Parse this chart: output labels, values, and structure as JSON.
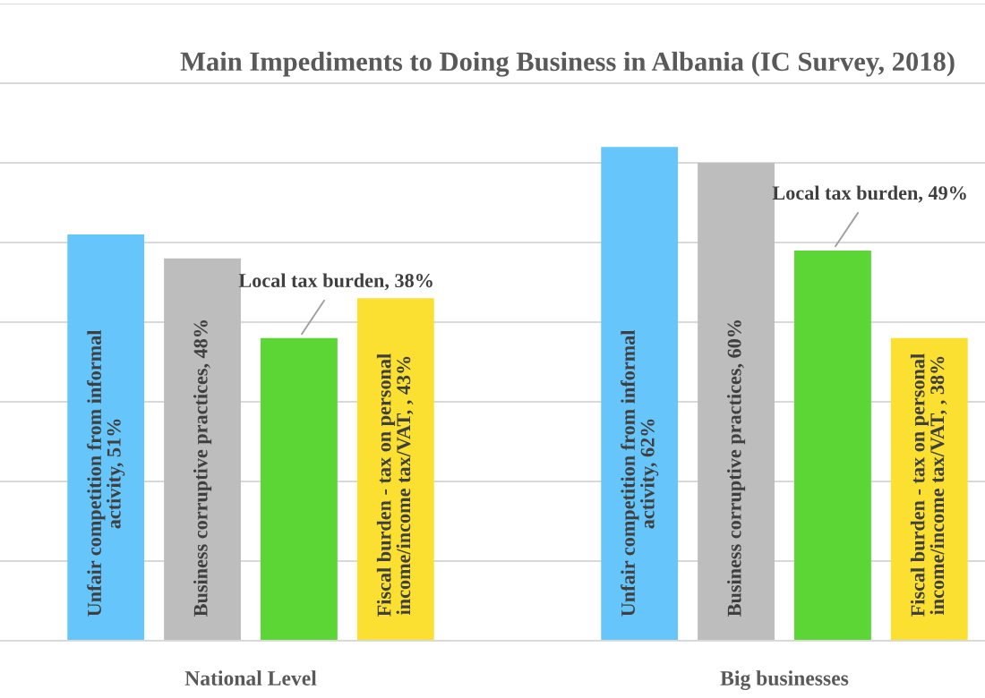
{
  "chart_data": {
    "type": "bar",
    "title": "Main Impediments to Doing Business in Albania (IC Survey, 2018)",
    "categories": [
      "National Level",
      "Big businesses"
    ],
    "series": [
      {
        "color": "#66c6fc",
        "values": [
          51,
          62
        ],
        "value_labels": [
          "Unfair competition from informal activity, 51%",
          "Unfair competition from informal activity, 62%"
        ]
      },
      {
        "color": "#bdbdbd",
        "values": [
          48,
          60
        ],
        "value_labels": [
          "Business corruptive practices, 48%",
          "Business corruptive practices, 60%"
        ]
      },
      {
        "color": "#5cd635",
        "values": [
          38,
          49
        ],
        "value_labels": [
          "Local tax burden, 38%",
          "Local tax burden, 49%"
        ]
      },
      {
        "color": "#fbe031",
        "values": [
          43,
          38
        ],
        "value_labels": [
          "Fiscal burden - tax on personal income/income tax/VAT, , 43%",
          "Fiscal burden - tax on personal income/income tax/VAT, , 38%"
        ]
      }
    ],
    "ylim": [
      0,
      80
    ],
    "yticks": [
      {
        "value": 0,
        "label": null
      },
      {
        "value": 10,
        "label": null
      },
      {
        "value": 20,
        "label": null
      },
      {
        "value": 30,
        "label": null
      },
      {
        "value": 40,
        "label": null
      },
      {
        "value": 50,
        "label": null
      },
      {
        "value": 60,
        "label": null
      },
      {
        "value": 70,
        "label": null
      },
      {
        "value": 80,
        "label": null
      }
    ],
    "grid": "y",
    "tick_labels": "x",
    "legend": false
  }
}
